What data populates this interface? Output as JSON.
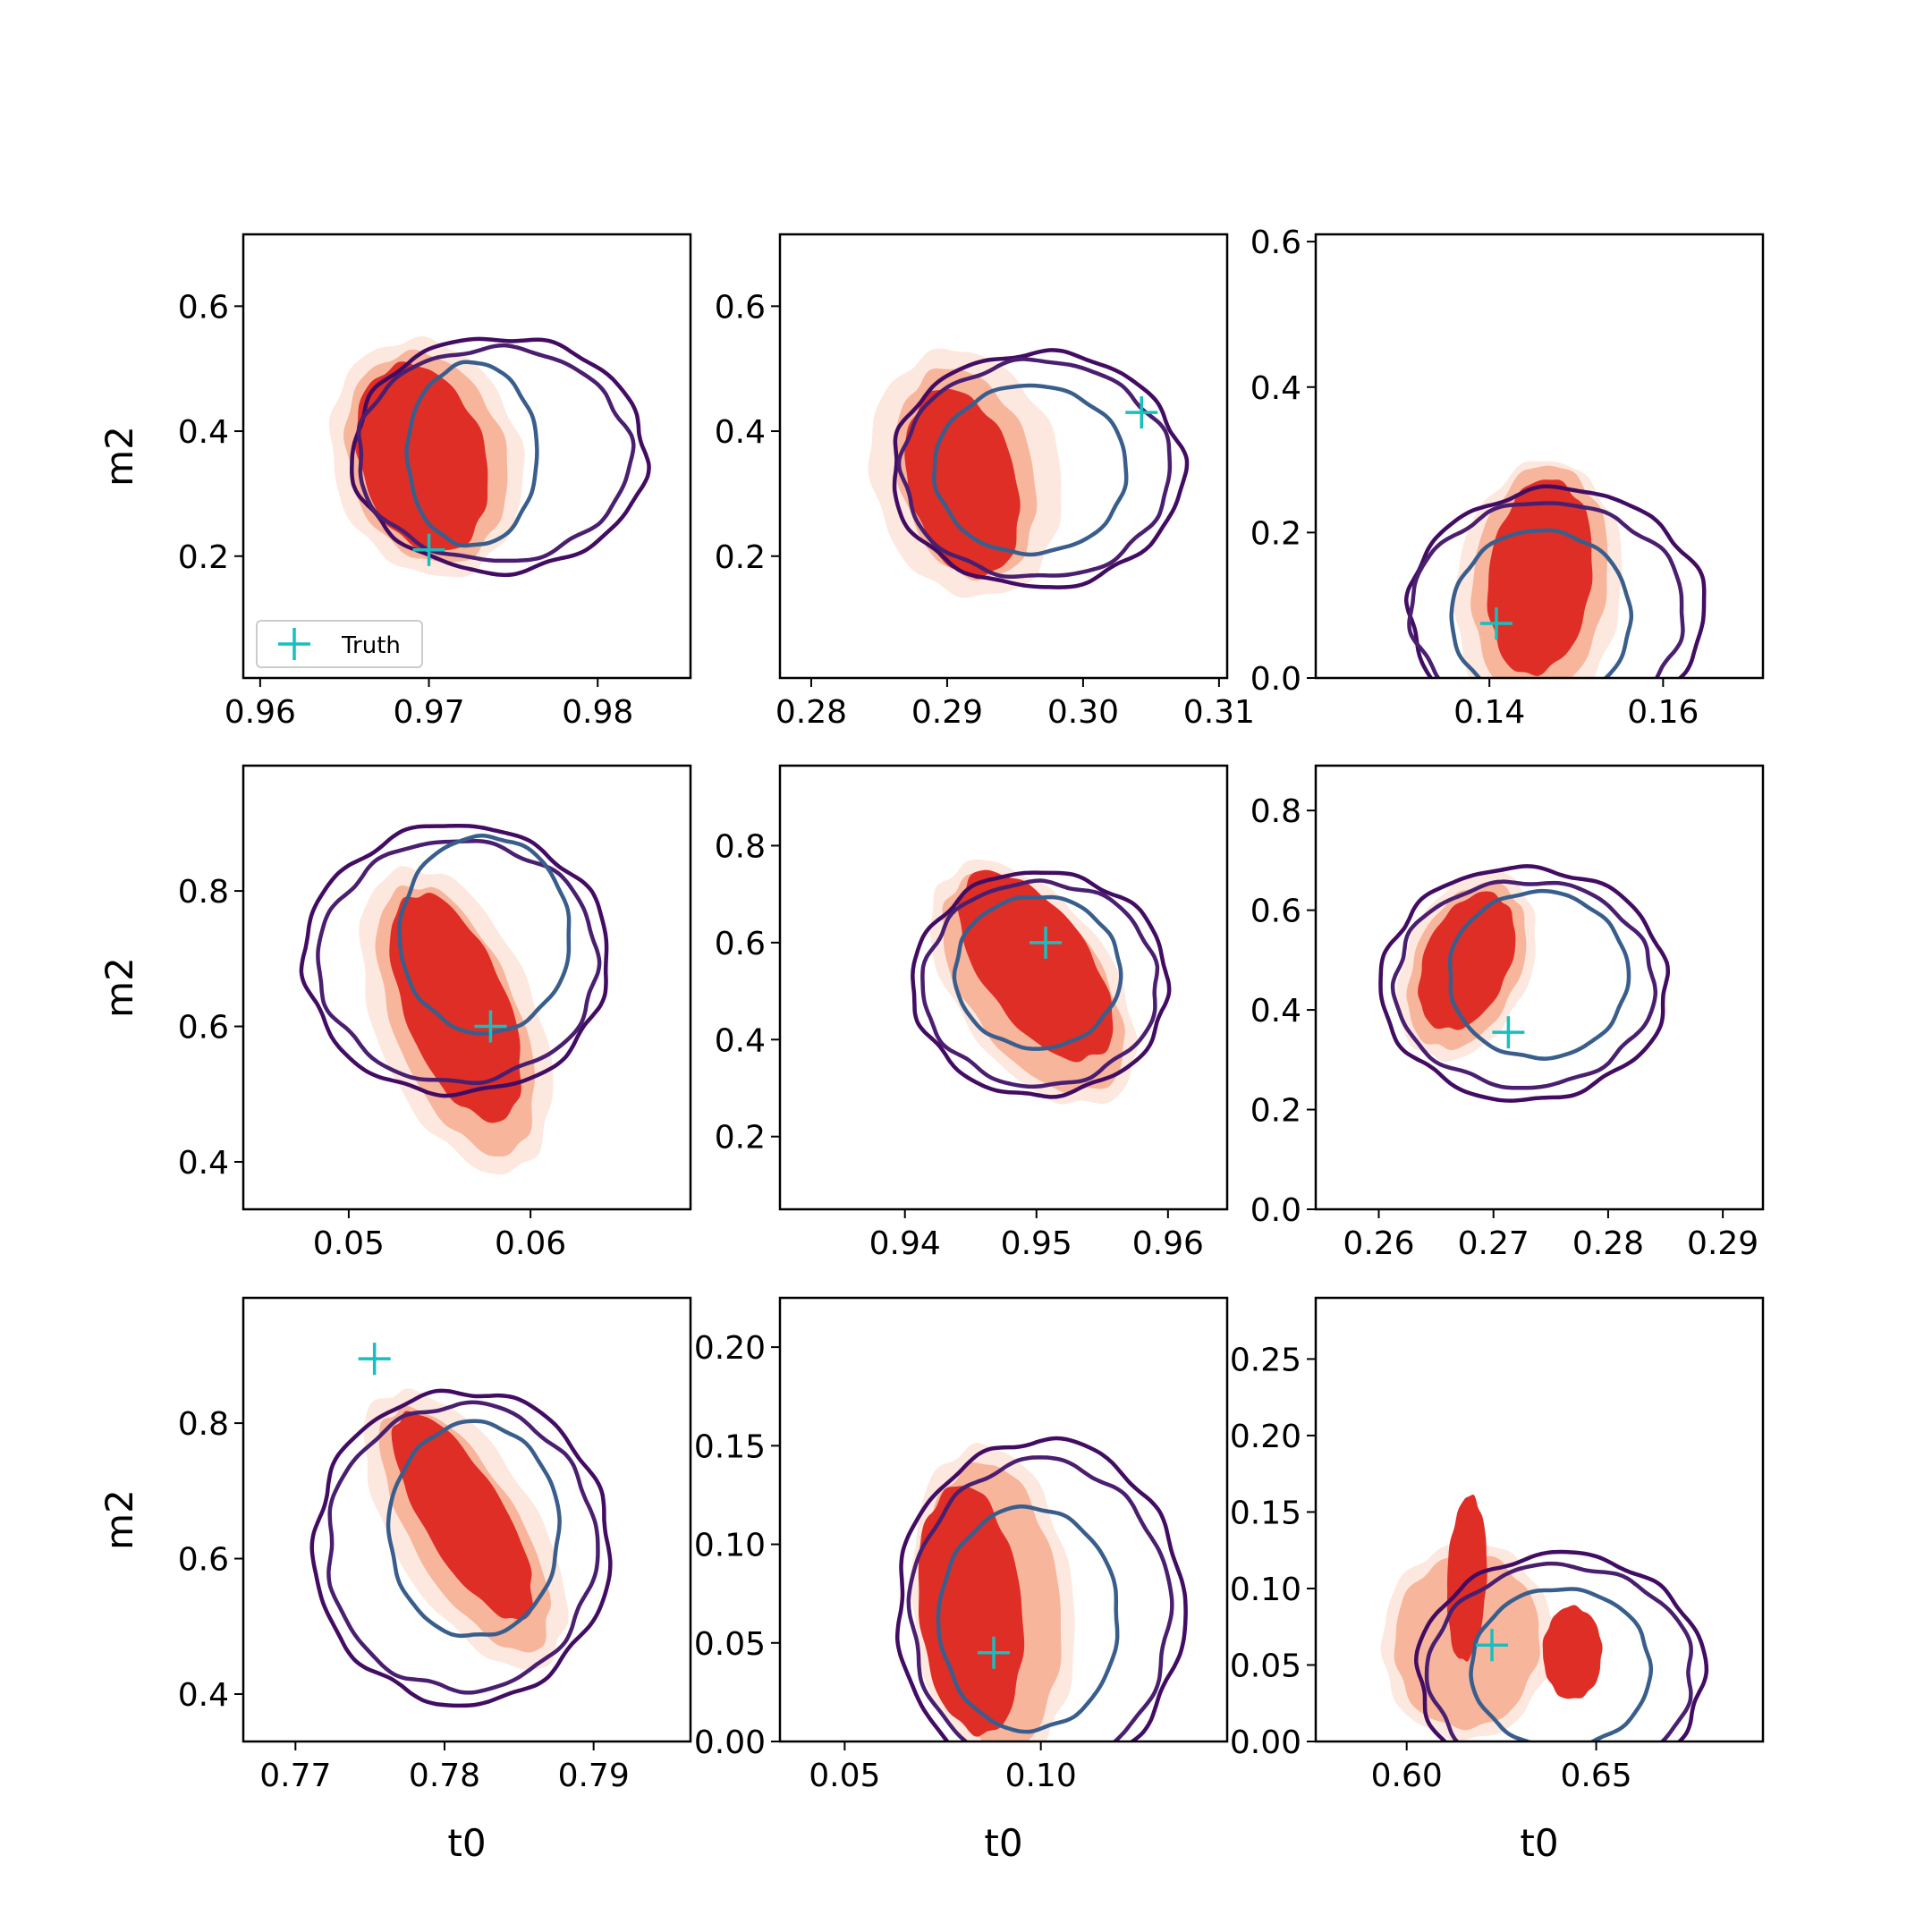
{
  "figure": {
    "legend_label": "Truth",
    "truth_color": "#17bfbf",
    "fill_colors": [
      "#fde8df",
      "#f7b59c",
      "#df2e26"
    ],
    "contour_colors": {
      "outer": "#430c63",
      "middle": "#4a1f70",
      "inner": "#3a5e8c"
    }
  },
  "chart_data": [
    {
      "type": "contour",
      "panel": "r1c1",
      "xlabel": "",
      "ylabel": "m2",
      "xlim": [
        0.959,
        0.9855
      ],
      "ylim": [
        0.005,
        0.715
      ],
      "xticks": [
        0.96,
        0.97,
        0.98
      ],
      "xtick_labels": [
        "0.96",
        "0.97",
        "0.98"
      ],
      "yticks": [
        0.2,
        0.4,
        0.6
      ],
      "ytick_labels": [
        "0.2",
        "0.4",
        "0.6"
      ],
      "truth": [
        0.97,
        0.21
      ],
      "legend": "lower-left",
      "fill_centers": [
        [
          0.9723,
          0.36
        ]
      ],
      "contour_center": [
        0.9725,
        0.35
      ]
    },
    {
      "type": "contour",
      "panel": "r1c2",
      "xlabel": "",
      "ylabel": "",
      "xlim": [
        0.2777,
        0.3106
      ],
      "ylim": [
        0.005,
        0.715
      ],
      "xticks": [
        0.28,
        0.29,
        0.3,
        0.31
      ],
      "xtick_labels": [
        "0.28",
        "0.29",
        "0.30",
        "0.31"
      ],
      "yticks": [
        0.2,
        0.4,
        0.6
      ],
      "ytick_labels": [
        "0.2",
        "0.4",
        "0.6"
      ],
      "truth": [
        0.3043,
        0.43
      ],
      "fill_centers": [
        [
          0.2965,
          0.37
        ]
      ],
      "contour_center": [
        0.2975,
        0.35
      ]
    },
    {
      "type": "contour",
      "panel": "r1c3",
      "xlabel": "",
      "ylabel": "",
      "xlim": [
        0.12,
        0.1715
      ],
      "ylim": [
        0.0,
        0.61
      ],
      "xticks": [
        0.14,
        0.16
      ],
      "xtick_labels": [
        "0.14",
        "0.16"
      ],
      "yticks": [
        0.0,
        0.2,
        0.4,
        0.6
      ],
      "ytick_labels": [
        "0.0",
        "0.2",
        "0.4",
        "0.6"
      ],
      "truth": [
        0.1408,
        0.075
      ],
      "fill_centers": [
        [
          0.1475,
          0.2
        ]
      ],
      "contour_center": [
        0.1465,
        0.2
      ]
    },
    {
      "type": "contour",
      "panel": "r2c1",
      "xlabel": "",
      "ylabel": "m2",
      "xlim": [
        0.0442,
        0.0688
      ],
      "ylim": [
        0.33,
        0.985
      ],
      "xticks": [
        0.05,
        0.06
      ],
      "xtick_labels": [
        "0.05",
        "0.06"
      ],
      "yticks": [
        0.4,
        0.6,
        0.8
      ],
      "ytick_labels": [
        "0.4",
        "0.6",
        "0.8"
      ],
      "truth": [
        0.0578,
        0.6
      ],
      "fill_centers": [
        [
          0.0556,
          0.67
        ]
      ],
      "contour_center": [
        0.0563,
        0.7
      ]
    },
    {
      "type": "contour",
      "panel": "r2c2",
      "xlabel": "",
      "ylabel": "",
      "xlim": [
        0.9305,
        0.9645
      ],
      "ylim": [
        0.05,
        0.965
      ],
      "xticks": [
        0.94,
        0.95,
        0.96
      ],
      "xtick_labels": [
        "0.94",
        "0.95",
        "0.96"
      ],
      "yticks": [
        0.2,
        0.4,
        0.6,
        0.8
      ],
      "ytick_labels": [
        "0.2",
        "0.4",
        "0.6",
        "0.8"
      ],
      "truth": [
        0.9507,
        0.6
      ],
      "fill_centers": [
        [
          0.951,
          0.57
        ]
      ],
      "contour_center": [
        0.9505,
        0.56
      ]
    },
    {
      "type": "contour",
      "panel": "r2c3",
      "xlabel": "",
      "ylabel": "",
      "xlim": [
        0.2545,
        0.2935
      ],
      "ylim": [
        0.0,
        0.89
      ],
      "xticks": [
        0.26,
        0.27,
        0.28,
        0.29
      ],
      "xtick_labels": [
        "0.26",
        "0.27",
        "0.28",
        "0.29"
      ],
      "yticks": [
        0.0,
        0.2,
        0.4,
        0.6,
        0.8
      ],
      "ytick_labels": [
        "0.0",
        "0.2",
        "0.4",
        "0.6",
        "0.8"
      ],
      "truth": [
        0.2713,
        0.355
      ],
      "fill_centers": [
        [
          0.2695,
          0.46
        ]
      ],
      "contour_center": [
        0.273,
        0.44
      ]
    },
    {
      "type": "contour",
      "panel": "r3c1",
      "xlabel": "t0",
      "ylabel": "m2",
      "xlim": [
        0.7665,
        0.7965
      ],
      "ylim": [
        0.33,
        0.985
      ],
      "xticks": [
        0.77,
        0.78,
        0.79
      ],
      "xtick_labels": [
        "0.77",
        "0.78",
        "0.79"
      ],
      "yticks": [
        0.4,
        0.6,
        0.8
      ],
      "ytick_labels": [
        "0.4",
        "0.6",
        "0.8"
      ],
      "truth": [
        0.7753,
        0.895
      ],
      "fill_centers": [
        [
          0.7808,
          0.77
        ]
      ],
      "contour_center": [
        0.7815,
        0.75
      ]
    },
    {
      "type": "contour",
      "panel": "r3c2",
      "xlabel": "t0",
      "ylabel": "",
      "xlim": [
        0.0335,
        0.1475
      ],
      "ylim": [
        0.0,
        0.225
      ],
      "xticks": [
        0.05,
        0.1
      ],
      "xtick_labels": [
        "0.05",
        "0.10"
      ],
      "yticks": [
        0.0,
        0.05,
        0.1,
        0.15,
        0.2
      ],
      "ytick_labels": [
        "0.00",
        "0.05",
        "0.10",
        "0.15",
        "0.20"
      ],
      "truth": [
        0.088,
        0.045
      ],
      "fill_centers": [
        [
          0.083,
          0.07
        ]
      ],
      "contour_center": [
        0.09,
        0.07
      ]
    },
    {
      "type": "contour",
      "panel": "r3c3",
      "xlabel": "t0",
      "ylabel": "",
      "xlim": [
        0.576,
        0.694
      ],
      "ylim": [
        0.0,
        0.29
      ],
      "xticks": [
        0.6,
        0.65
      ],
      "xtick_labels": [
        "0.60",
        "0.65"
      ],
      "yticks": [
        0.0,
        0.05,
        0.1,
        0.15,
        0.2,
        0.25
      ],
      "ytick_labels": [
        "0.00",
        "0.05",
        "0.10",
        "0.15",
        "0.20",
        "0.25"
      ],
      "truth": [
        0.6225,
        0.063
      ],
      "fill_centers": [
        [
          0.614,
          0.09
        ],
        [
          0.6525,
          0.06
        ]
      ],
      "contour_center": [
        0.638,
        0.06
      ]
    }
  ]
}
